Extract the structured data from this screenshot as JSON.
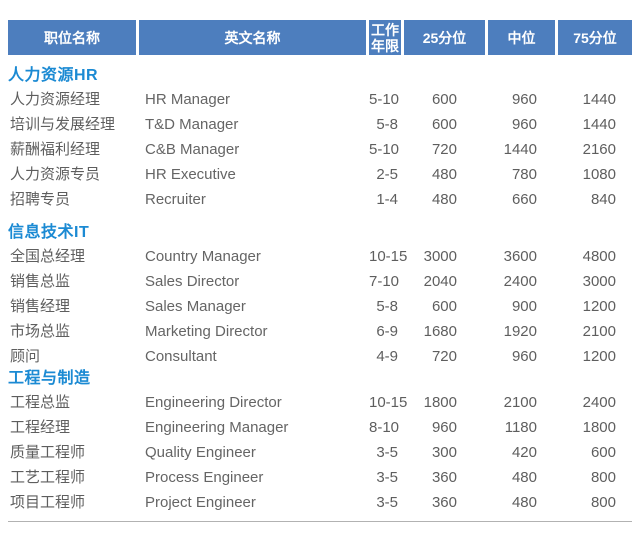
{
  "colors": {
    "header_bg": "#4D7EBE",
    "header_text": "#FFFFFF",
    "section_title": "#1B8AD3",
    "row_text": "#5E5E5E",
    "row_text_en": "#656565",
    "divider": "#B2B2B2"
  },
  "table": {
    "headers": [
      "职位名称",
      "英文名称",
      "工作年限",
      "25分位",
      "中位",
      "75分位"
    ],
    "sections": [
      {
        "title": "人力资源HR",
        "rows": [
          [
            "人力资源经理",
            "HR Manager",
            "5-10",
            "600",
            "960",
            "1440"
          ],
          [
            "培训与发展经理",
            "T&D Manager",
            "5-8",
            "600",
            "960",
            "1440"
          ],
          [
            "薪酬福利经理",
            "C&B Manager",
            "5-10",
            "720",
            "1440",
            "2160"
          ],
          [
            "人力资源专员",
            "HR Executive",
            "2-5",
            "480",
            "780",
            "1080"
          ],
          [
            "招聘专员",
            "Recruiter",
            "1-4",
            "480",
            "660",
            "840"
          ]
        ]
      },
      {
        "title": "信息技术IT",
        "rows": [
          [
            "全国总经理",
            "Country Manager",
            "10-15",
            "3000",
            "3600",
            "4800"
          ],
          [
            "销售总监",
            "Sales Director",
            "7-10",
            "2040",
            "2400",
            "3000"
          ],
          [
            "销售经理",
            "Sales Manager",
            "5-8",
            "600",
            "900",
            "1200"
          ],
          [
            "市场总监",
            "Marketing Director",
            "6-9",
            "1680",
            "1920",
            "2100"
          ],
          [
            "顾问",
            "Consultant",
            "4-9",
            "720",
            "960",
            "1200"
          ]
        ]
      },
      {
        "title": "工程与制造",
        "rows": [
          [
            "工程总监",
            "Engineering Director",
            "10-15",
            "1800",
            "2100",
            "2400"
          ],
          [
            "工程经理",
            "Engineering Manager",
            "8-10",
            "960",
            "1180",
            "1800"
          ],
          [
            "质量工程师",
            "Quality Engineer",
            "3-5",
            "300",
            "420",
            "600"
          ],
          [
            "工艺工程师",
            "Process Engineer",
            "3-5",
            "360",
            "480",
            "800"
          ],
          [
            "项目工程师",
            "Project Engineer",
            "3-5",
            "360",
            "480",
            "800"
          ]
        ]
      }
    ]
  }
}
